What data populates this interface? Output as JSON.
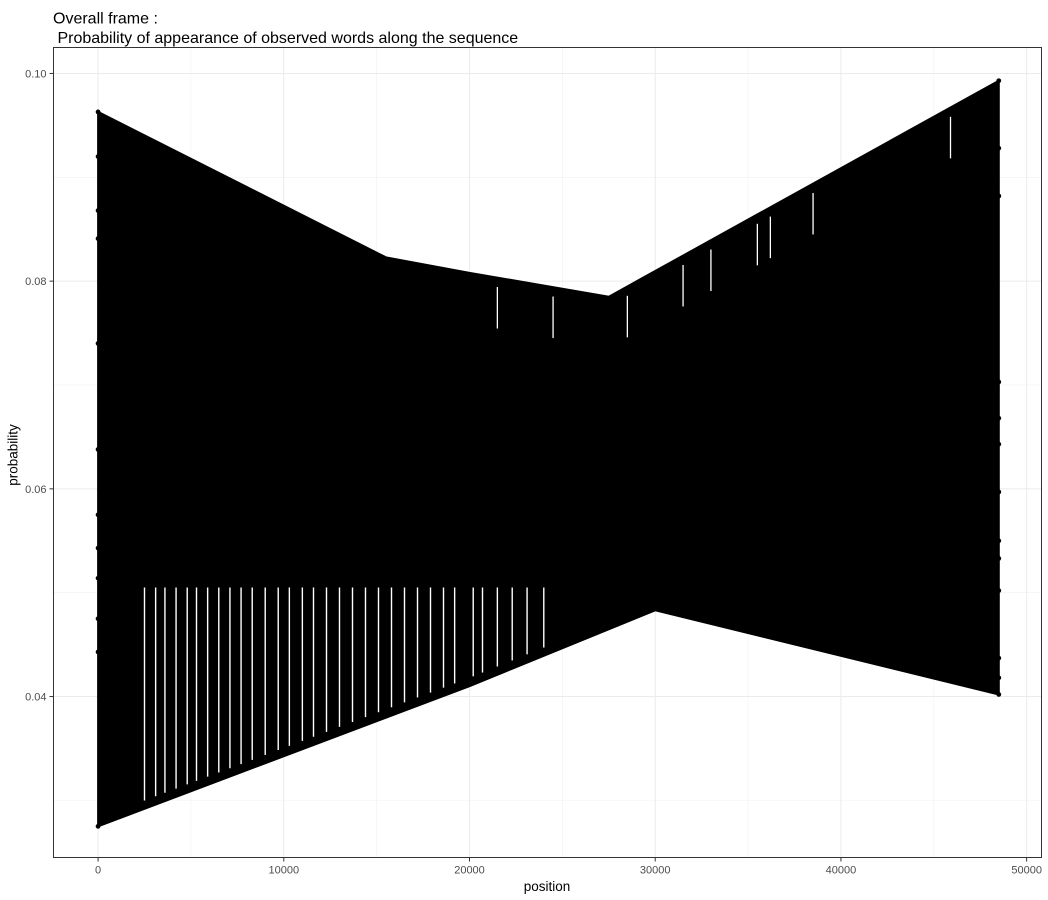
{
  "chart_data": {
    "type": "line",
    "title_line1": "Overall frame :",
    "title_line2": " Probability of appearance of observed words along the sequence",
    "xlabel": "position",
    "ylabel": "probability",
    "xlim": [
      -2400,
      50800
    ],
    "ylim": [
      0.0245,
      0.1025
    ],
    "x_ticks": [
      0,
      10000,
      20000,
      30000,
      40000,
      50000
    ],
    "x_tick_labels": [
      "0",
      "10000",
      "20000",
      "30000",
      "40000",
      "50000"
    ],
    "y_ticks": [
      0.04,
      0.06,
      0.08,
      0.1
    ],
    "y_tick_labels": [
      "0.04",
      "0.06",
      "0.08",
      "0.10"
    ],
    "grid": true,
    "series": [
      {
        "color": "#000000",
        "upper_envelope": {
          "x": [
            0,
            15500,
            20000,
            27500,
            48500
          ],
          "y": [
            0.0963,
            0.0823,
            0.0808,
            0.0785,
            0.0993
          ]
        },
        "lower_envelope": {
          "x": [
            0,
            20000,
            30000,
            48500
          ],
          "y": [
            0.0275,
            0.041,
            0.0483,
            0.0402
          ]
        },
        "edge_points": {
          "x0": [
            0.0963,
            0.092,
            0.0868,
            0.0841,
            0.074,
            0.0638,
            0.0575,
            0.0543,
            0.0514,
            0.0475,
            0.0443,
            0.0275
          ],
          "x_end": [
            0.0993,
            0.0928,
            0.0882,
            0.0703,
            0.0668,
            0.0643,
            0.0597,
            0.055,
            0.0533,
            0.0502,
            0.0437,
            0.0418,
            0.0402
          ]
        }
      }
    ],
    "white_gaps": {
      "lower_zone": [
        2500,
        3100,
        3600,
        4200,
        4800,
        5300,
        5900,
        6500,
        7100,
        7700,
        8300,
        9000,
        9700,
        10300,
        11000,
        11600,
        12300,
        13000,
        13700,
        14400,
        15100,
        15800,
        16500,
        17200,
        17900,
        18600,
        19200,
        20200,
        20700,
        21500,
        22300,
        23100,
        24000
      ],
      "upper_zone": [
        21500,
        24500,
        28500,
        31500,
        33000,
        35500,
        36200,
        38500,
        45900
      ]
    }
  }
}
